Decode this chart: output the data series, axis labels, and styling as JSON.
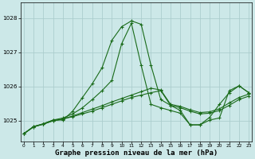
{
  "background_color": "#cce8e8",
  "grid_color": "#aacccc",
  "line_color": "#1a6b1a",
  "xlabel": "Graphe pression niveau de la mer (hPa)",
  "xlabel_fontsize": 6.5,
  "yticks": [
    1025,
    1026,
    1027,
    1028
  ],
  "xlim": [
    -0.3,
    23.3
  ],
  "ylim": [
    1024.4,
    1028.45
  ],
  "xticks": [
    0,
    1,
    2,
    3,
    4,
    5,
    6,
    7,
    8,
    9,
    10,
    11,
    12,
    13,
    14,
    15,
    16,
    17,
    18,
    19,
    20,
    21,
    22,
    23
  ],
  "series": [
    {
      "y": [
        1024.62,
        1024.82,
        1024.9,
        1025.0,
        1025.05,
        1025.12,
        1025.2,
        1025.28,
        1025.38,
        1025.48,
        1025.58,
        1025.68,
        1025.75,
        1025.82,
        1025.88,
        1025.45,
        1025.38,
        1025.28,
        1025.2,
        1025.22,
        1025.3,
        1025.45,
        1025.62,
        1025.72
      ],
      "lw": 0.8
    },
    {
      "y": [
        1024.62,
        1024.82,
        1024.9,
        1025.0,
        1025.05,
        1025.14,
        1025.24,
        1025.34,
        1025.44,
        1025.55,
        1025.65,
        1025.75,
        1025.85,
        1025.95,
        1025.9,
        1025.48,
        1025.42,
        1025.32,
        1025.24,
        1025.26,
        1025.35,
        1025.52,
        1025.68,
        1025.78
      ],
      "lw": 0.8
    },
    {
      "y": [
        1024.62,
        1024.83,
        1024.91,
        1025.02,
        1025.08,
        1025.2,
        1025.38,
        1025.62,
        1025.88,
        1026.18,
        1027.25,
        1027.85,
        1026.62,
        1025.48,
        1025.38,
        1025.3,
        1025.22,
        1024.88,
        1024.88,
        1025.1,
        1025.48,
        1025.82,
        1026.02,
        1025.82
      ],
      "lw": 0.8
    },
    {
      "y": [
        1024.62,
        1024.83,
        1024.91,
        1025.02,
        1025.02,
        1025.28,
        1025.68,
        1026.08,
        1026.55,
        1027.35,
        1027.75,
        1027.92,
        1027.82,
        1026.62,
        1025.62,
        1025.45,
        1025.3,
        1024.88,
        1024.88,
        1025.02,
        1025.08,
        1025.88,
        1026.02,
        1025.82
      ],
      "lw": 0.8
    }
  ]
}
